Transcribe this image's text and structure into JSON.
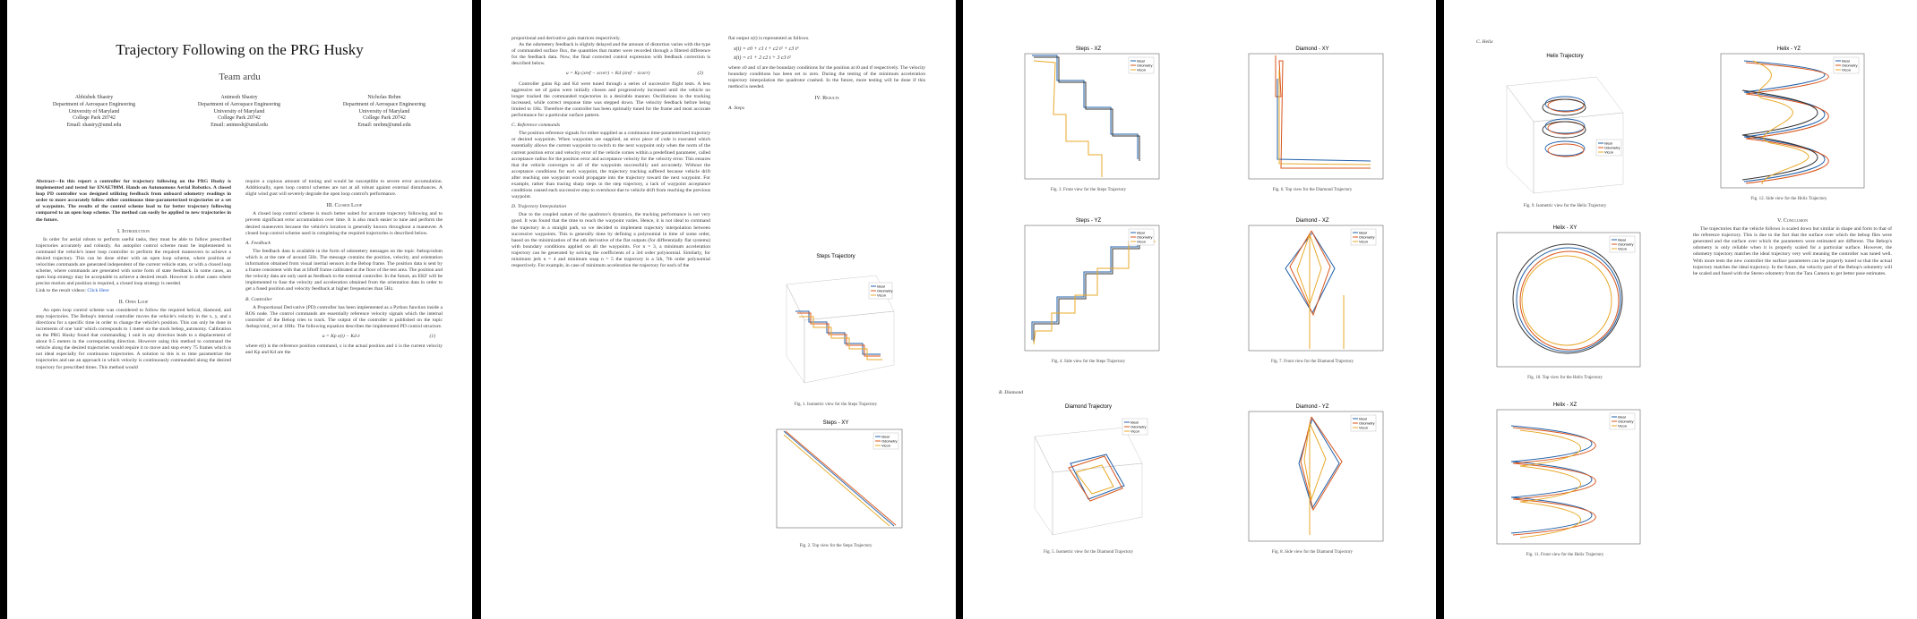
{
  "p1": {
    "title": "Trajectory Following on the PRG Husky",
    "team": "Team ardu",
    "authors": [
      {
        "name": "Abhishek Shastry",
        "dept": "Department of Aerospace Engineering",
        "uni": "University of Maryland",
        "city": "College Park 20742",
        "email": "Email: shastry@umd.edu"
      },
      {
        "name": "Animesh Shastry",
        "dept": "Department of Aerospace Engineering",
        "uni": "University of Maryland",
        "city": "College Park 20742",
        "email": "Email: animesh@umd.edu"
      },
      {
        "name": "Nicholas Rehm",
        "dept": "Department of Aerospace Engineering",
        "uni": "University of Maryland",
        "city": "College Park 20742",
        "email": "Email: nrehm@umd.edu"
      }
    ],
    "abstract": "Abstract—In this report a controller for trajectory following on the PRG Husky is implemented and tested for ENAE788M. Hands on Autonomous Aerial Robotics. A closed loop PD controller was designed utilizing feedback from onboard odometry readings in order to more accurately follow either continuous time-parameterized trajectories or a set of waypoints. The results of the control scheme lead to far better trajectory following compared to an open loop scheme. The method can easily be applied to new trajectories in the future.",
    "sec1": "I. Introduction",
    "intro": "In order for aerial robots to perform useful tasks, they must be able to follow prescribed trajectories accurately and robustly. An autopilot control scheme must be implemented to command the vehicle's inner loop controller to perform the required maneuvers to achieve a desired trajectory. This can be done either with an open loop scheme, where position or velocities commands are generated independent of the current vehicle state, or with a closed loop scheme, where commands are generated with some form of state feedback. In some cases, an open loop strategy may be acceptable to achieve a desired result. However in other cases where precise motion and position is required, a closed loop strategy is needed.",
    "link_text": "Link to the result videos:",
    "link": "Click Here",
    "sec2": "II. Open Loop",
    "openloop": "An open loop control scheme was considered to follow the required helical, diamond, and step trajectories. The Bebop's internal controller moves the vehicle's velocity in the x, y, and z directions for a specific time in order to change the vehicle's position. This can only be done in increments of one 'unit' which corresponds to 1 meter on the stock bebop_autonomy. Calibration on the PRG Husky found that commanding 1 unit in any direction leads to a displacement of about 0.5 meters in the corresponding direction. However using this method to command the vehicle along the desired trajectories would require it to move and stop every 75 frames which is not ideal especially for continuous trajectories. A solution to this is to time parametrize the trajectories and use an approach in which velocity is continuously commanded along the desired trajectory for prescribed times. This method would",
    "col2a": "require a copious amount of tuning and would be susceptible to severe error accumulation. Additionally, open loop control schemes are not at all robust against external disturbances. A slight wind gust will severely degrade the open loop control's performance.",
    "sec3": "III. Closed Loop",
    "closed": "A closed loop control scheme is much better suited for accurate trajectory following and to prevent significant error accumulation over time. It is also much easier to tune and perform the desired maneuvers because the vehicle's location is generally known throughout a maneuver. A closed loop control scheme used in completing the required trajectories is described below.",
    "subA": "A. Feedback",
    "feedback": "The feedback data is available in the form of odometery messages on the topic /bebop/odom which is at the rate of around 5Hz. The message contains the position, velocity, and orientation information obtained from visual inertial sensors in the Bebop frame. The position data is sent by a frame consistent with that at liftoff frame calibrated at the floor of the test area. The position and the velocity data are only used as feedback to the external controller. In the future, an EKF will be implemented to fuse the velocity and acceleration obtained from the orientation data in order to get a fused position and velocity feedback at higher frequencies than 5Hz.",
    "subB": "B. Controller",
    "controller": "A Proportional Derivative (PD) controller has been implemented as a Python function inside a ROS node. The control commands are essentially reference velocity signals which the internal controller of the Bebop tries to track. The output of the controller is published on the topic /bebop/cmd_vel at 10Hz. The following equation describes the implemented PD control structure.",
    "eq1": "u = Kp e(t) − Kd ė",
    "eq1num": "(1)",
    "where": "where e(t) is the reference position command, x is the actual position and ẋ is the current velocity and Kp and Kd are the"
  },
  "p2": {
    "c1a": "proportional and derivative gain matrices respectively.",
    "c1b": "As the odometery feedback is slightly delayed and the amount of distortion varies with the type of commanded surface flux, the quantities that matter were recorded through a filtered difference for the feedback data. Now, the final corrected control expression with feedback correction is described below.",
    "eq": "u = Kp (xref − xcorr) + Kd (ẋref − ẋcorr)",
    "eqnum": "(2)",
    "c1c": "Controller gains Kp and Kd were tuned through a series of successive flight tests. A less aggressive set of gains were initially chosen and progressively increased until the vehicle no longer tracked the commanded trajectories in a desirable manner. Oscillations in the tracking increased, while correct response time was stepped down. The velocity feedback before being limited to 1Hz. Therefore the controller has been optimally tuned for the frame and most accurate performance for a particular surface pattern.",
    "subC": "C. Reference commands",
    "refcmd": "The position reference signals for either supplied as a continuous time-parameterized trajectory or desired waypoints. When waypoints are supplied, an error piece of code is executed which essentially allows the current waypoint to switch to the next waypoint only when the norm of the current position error and velocity error of the vehicle comes within a predefined parameter, called acceptance radius for the position error and acceptance velocity for the velocity error. This ensures that the vehicle converges to all of the waypoints successfully and accurately. Without the acceptance conditions for each waypoint, the trajectory tracking suffered because vehicle drift after reaching one waypoint would propagate into the trajectory toward the next waypoint. For example, rather than tracing sharp steps in the step trajectory, a lack of waypoint acceptance conditions caused each successive step to overshoot due to vehicle drift from reaching the previous waypoint.",
    "subD": "D. Trajectory Interpolation",
    "interp": "Due to the coupled nature of the quadrotor's dynamics, the tracking performance is not very good. It was found that the time to reach the waypoint varies. Hence, it is not ideal to command the trajectory in a straight path, so we decided to implement trajectory interpolation between successive waypoints. This is generally done by defining a polynomial in time of some order, based on the minimization of the nth derivative of the flat outputs (for differentially flat systems) with boundary conditions applied on all the waypoints. For n = 3, a minimum acceleration trajectory can be generated by solving the coefficients of a 3rd order polynomial. Similarly, for minimum jerk n = 4 and minimum snap n = 5 the trajectory is a 5th, 7th order polynomial respectively. For example, in case of minimum acceleration the trajectory for each of the",
    "c2a": "flat output x(t) is represented as follows.",
    "math": "x(t) = c0 + c1 t + c2 t² + c3 t³\nẋ(t) = c1 + 2 c2 t + 3 c3 t²",
    "c2b": "where x0 and xf are the boundary conditions for the position at t0 and tf respectively. The velocity boundary conditions has been set to zero. During the testing of the minimum acceleration trajectory interpolation the quadrotor crashed. In the future, more testing will be done if this method is needed.",
    "sec4": "IV. Results",
    "subA": "A. Steps",
    "fig1cap": "Fig. 1.  Isometric view for the Steps Trajectory",
    "fig2cap": "Fig. 2.  Top view for the Steps Trajectory"
  },
  "p3": {
    "subB": "B. Diamond",
    "fig3cap": "Fig. 3.  Front view for the Steps Trajectory",
    "fig4cap": "Fig. 4.  Side view for the Steps Trajectory",
    "fig5cap": "Fig. 5.  Isometric view for the Diamond Trajectory",
    "fig6cap": "Fig. 6.  Top view for the Diamond Trajectory",
    "fig7cap": "Fig. 7.  Front view for the Diamond Trajectory",
    "fig8cap": "Fig. 8.  Side view for the Diamond Trajectory"
  },
  "p4": {
    "subC": "C. Helix",
    "fig9cap": "Fig. 9.  Isometric view for the Helix Trajectory",
    "fig10cap": "Fig. 10.  Top view for the Helix Trajectory",
    "fig11cap": "Fig. 11.  Front view for the Helix Trajectory",
    "fig12cap": "Fig. 12.  Side view for the Helix Trajectory",
    "sec5": "V. Conclusion",
    "conclusion": "The trajectories that the vehicle follows is scaled down but similar in shape and form to that of the reference trajectory. This is due to the fact that the surface over which the bebop flies were generated and the surface over which the parameters were estimated are different. The Bebop's odometry is only reliable when it is properly scaled for a particular surface. However, the odometry trajectory matches the ideal trajectory very well meaning the controller was tuned well. With more tests the new controller the surface parameters can be properly tuned so that the actual trajectory matches the ideal trajectory. In the future, the velocity part of the Bebop's odometry will be scaled and fused with the Stereo odometry from the Tara Camera to get better pose estimates."
  },
  "plots": [
    {
      "title": "Steps Trajectory",
      "legend": [
        "Ideal",
        "Odometry",
        "Vicon"
      ]
    },
    {
      "title": "Steps - XY",
      "legend": [
        "Ideal",
        "Odometry",
        "Vicon"
      ]
    },
    {
      "title": "Steps - XZ",
      "legend": [
        "Ideal",
        "Odometry",
        "Vicon"
      ]
    },
    {
      "title": "Steps - YZ",
      "legend": [
        "Ideal",
        "Odometry",
        "Vicon"
      ]
    },
    {
      "title": "Diamond Trajectory",
      "legend": [
        "Ideal",
        "Odometry",
        "Vicon"
      ]
    },
    {
      "title": "Diamond - XY",
      "legend": [
        "Ideal",
        "Odometry",
        "Vicon"
      ]
    },
    {
      "title": "Diamond - XZ",
      "legend": [
        "Ideal",
        "Odometry",
        "Vicon"
      ]
    },
    {
      "title": "Diamond - YZ",
      "legend": [
        "Ideal",
        "Odometry",
        "Vicon"
      ]
    },
    {
      "title": "Helix Trajectory",
      "legend": [
        "Ideal",
        "Odometry",
        "Vicon"
      ]
    },
    {
      "title": "Helix - XY",
      "legend": [
        "Ideal",
        "Odometry",
        "Vicon"
      ]
    },
    {
      "title": "Helix - XZ",
      "legend": [
        "Ideal",
        "Odometry",
        "Vicon"
      ]
    },
    {
      "title": "Helix - YZ",
      "legend": [
        "Ideal",
        "Odometry",
        "Vicon"
      ]
    }
  ],
  "colors": {
    "ideal": "#1f5fa8",
    "odometry": "#d9541a",
    "vicon": "#e8a92a"
  }
}
